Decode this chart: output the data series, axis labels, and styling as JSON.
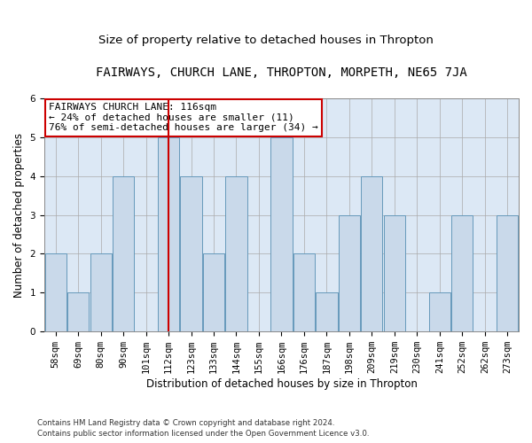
{
  "title": "FAIRWAYS, CHURCH LANE, THROPTON, MORPETH, NE65 7JA",
  "subtitle": "Size of property relative to detached houses in Thropton",
  "xlabel": "Distribution of detached houses by size in Thropton",
  "ylabel": "Number of detached properties",
  "categories": [
    "58sqm",
    "69sqm",
    "80sqm",
    "90sqm",
    "101sqm",
    "112sqm",
    "123sqm",
    "133sqm",
    "144sqm",
    "155sqm",
    "166sqm",
    "176sqm",
    "187sqm",
    "198sqm",
    "209sqm",
    "219sqm",
    "230sqm",
    "241sqm",
    "252sqm",
    "262sqm",
    "273sqm"
  ],
  "values": [
    2,
    1,
    2,
    4,
    0,
    5,
    4,
    2,
    4,
    0,
    5,
    2,
    1,
    3,
    4,
    3,
    0,
    1,
    3,
    0,
    3
  ],
  "bar_color": "#c9d9ea",
  "bar_edge_color": "#6699bb",
  "highlight_index": 5,
  "highlight_line_color": "#cc0000",
  "ylim": [
    0,
    6
  ],
  "yticks": [
    0,
    1,
    2,
    3,
    4,
    5,
    6
  ],
  "annotation_text": "FAIRWAYS CHURCH LANE: 116sqm\n← 24% of detached houses are smaller (11)\n76% of semi-detached houses are larger (34) →",
  "annotation_box_color": "#ffffff",
  "annotation_box_edge_color": "#cc0000",
  "footer1": "Contains HM Land Registry data © Crown copyright and database right 2024.",
  "footer2": "Contains public sector information licensed under the Open Government Licence v3.0.",
  "background_color": "#dce8f5",
  "title_fontsize": 10,
  "subtitle_fontsize": 9.5,
  "tick_fontsize": 7.5,
  "ylabel_fontsize": 8.5,
  "xlabel_fontsize": 8.5,
  "annotation_fontsize": 8
}
